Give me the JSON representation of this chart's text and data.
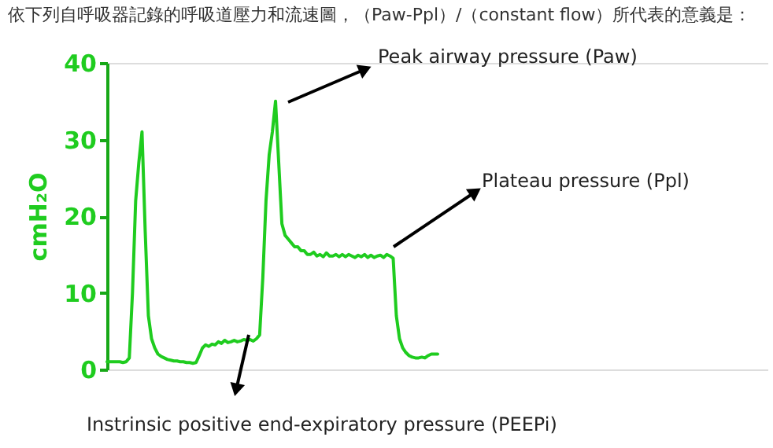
{
  "chart_data": {
    "type": "line",
    "title": "依下列自呼吸器記錄的呼吸道壓力和流速圖，（Paw-Ppl）/（constant flow）所代表的意義是：",
    "ylabel": "cmH₂O",
    "color": "#1fcc1f",
    "ylim": [
      0,
      40
    ],
    "yticks": [
      0,
      10,
      20,
      30,
      40
    ],
    "tick_labels": "y",
    "categories": [
      null,
      null,
      null,
      null,
      null,
      null,
      null,
      null,
      null,
      null,
      null,
      null,
      null,
      null,
      null,
      null,
      null,
      null,
      null,
      null,
      null,
      null,
      null,
      null,
      null,
      null,
      null,
      null,
      null,
      null,
      null,
      null,
      null,
      null,
      null,
      null,
      null,
      null,
      null,
      null,
      null,
      null,
      null,
      null,
      null,
      null,
      null,
      null,
      null,
      null,
      null,
      null,
      null,
      null,
      null,
      null,
      null,
      null,
      null,
      null,
      null,
      null,
      null,
      null,
      null,
      null,
      null,
      null,
      null,
      null,
      null,
      null,
      null,
      null,
      null,
      null,
      null,
      null,
      null,
      null,
      null,
      null,
      null,
      null,
      null,
      null,
      null,
      null,
      null,
      null,
      null,
      null,
      null,
      null,
      null,
      null,
      null,
      null,
      null,
      null,
      null,
      null,
      null,
      null,
      null
    ],
    "values": [
      1.0,
      1.0,
      1.0,
      1.0,
      1.0,
      0.9,
      1.0,
      1.5,
      10,
      22,
      27,
      31,
      18,
      7,
      4,
      2.8,
      2.0,
      1.7,
      1.5,
      1.3,
      1.2,
      1.1,
      1.1,
      1.0,
      1.0,
      0.9,
      0.9,
      0.8,
      0.9,
      1.8,
      2.8,
      3.2,
      3.0,
      3.3,
      3.2,
      3.6,
      3.4,
      3.8,
      3.5,
      3.6,
      3.8,
      3.6,
      3.7,
      3.9,
      3.8,
      3.9,
      3.7,
      4.0,
      4.5,
      12,
      22,
      28,
      31,
      35,
      27,
      19,
      17.5,
      17,
      16.5,
      16,
      16,
      15.5,
      15.5,
      15,
      15,
      15.3,
      14.8,
      15,
      14.7,
      15.2,
      14.8,
      14.8,
      15,
      14.7,
      15,
      14.7,
      15,
      14.8,
      14.6,
      14.9,
      14.7,
      15,
      14.6,
      14.9,
      14.6,
      14.8,
      14.9,
      14.6,
      15,
      14.8,
      14.5,
      7,
      4,
      2.8,
      2.2,
      1.8,
      1.6,
      1.5,
      1.5,
      1.6,
      1.5,
      1.8,
      2.0,
      2.0,
      2.0
    ],
    "annotations": [
      "Peak airway pressure (Paw)",
      "Plateau pressure (Ppl)",
      "Instrinsic positive end-expiratory pressure (PEEPi)"
    ]
  }
}
